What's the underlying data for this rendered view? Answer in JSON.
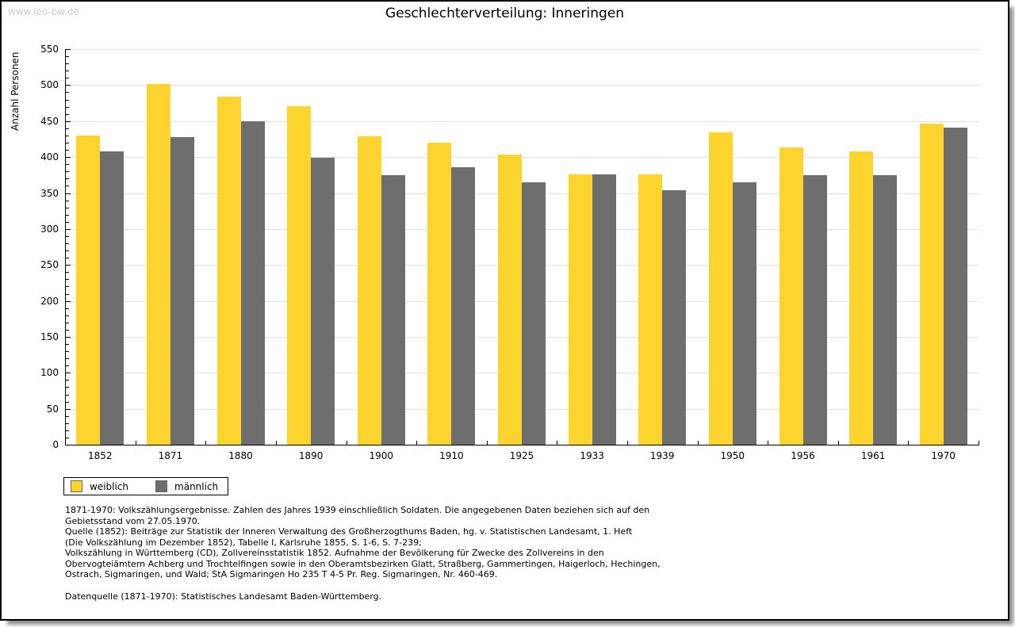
{
  "watermark": "www.leo-bw.de",
  "title": "Geschlechterverteilung: Inneringen",
  "chart_data": {
    "type": "bar",
    "title": "Geschlechterverteilung: Inneringen",
    "xlabel": "",
    "ylabel": "Anzahl Personen",
    "ylim": [
      0,
      550
    ],
    "ytick_step": 50,
    "yminor_step": 10,
    "grid": true,
    "legend_position": "bottom-left",
    "categories": [
      "1852",
      "1871",
      "1880",
      "1890",
      "1900",
      "1910",
      "1925",
      "1933",
      "1939",
      "1950",
      "1956",
      "1961",
      "1970"
    ],
    "series": [
      {
        "name": "weiblich",
        "color": "#fcd42d",
        "values": [
          430,
          502,
          484,
          471,
          429,
          420,
          404,
          376,
          376,
          434,
          413,
          408,
          446
        ]
      },
      {
        "name": "männlich",
        "color": "#6e6e6e",
        "values": [
          408,
          428,
          450,
          399,
          375,
          386,
          365,
          376,
          354,
          365,
          375,
          375,
          441
        ]
      }
    ]
  },
  "footnotes": {
    "notes": "1871-1970: Volkszählungsergebnisse. Zahlen des Jahres 1939 einschließlich Soldaten. Die angegebenen Daten beziehen sich auf den\nGebietsstand vom 27.05.1970.\nQuelle (1852): Beiträge zur Statistik der Inneren Verwaltung des Großherzogthums Baden, hg. v. Statistischen Landesamt, 1. Heft\n(Die Volkszählung im Dezember 1852), Tabelle I, Karlsruhe 1855, S. 1-6, S. 7-239;\nVolkszählung in Württemberg (CD), Zollvereinsstatistik 1852. Aufnahme der Bevölkerung für Zwecke des Zollvereins in den\nObervogteiämtern Achberg und Trochtelfingen sowie in den Oberamtsbezirken Glatt, Straßberg, Gammertingen, Haigerloch, Hechingen,\nOstrach, Sigmaringen, und Wald; StA Sigmaringen Ho 235 T 4-5 Pr. Reg. Sigmaringen, Nr. 460-469.",
    "datasource": "Datenquelle (1871-1970): Statistisches Landesamt Baden-Württemberg."
  }
}
